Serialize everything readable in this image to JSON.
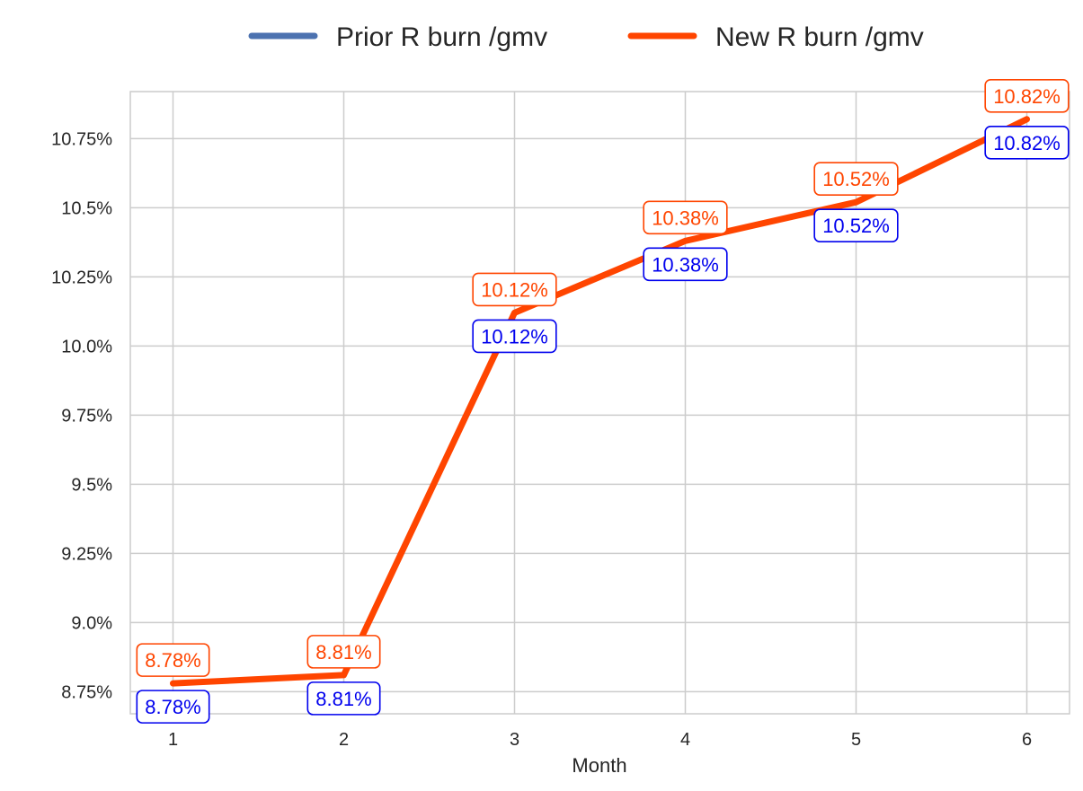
{
  "chart_data": {
    "type": "line",
    "title": "",
    "xlabel": "Month",
    "ylabel": "",
    "x": [
      1,
      2,
      3,
      4,
      5,
      6
    ],
    "x_tick_labels": [
      "1",
      "2",
      "3",
      "4",
      "5",
      "6"
    ],
    "y_ticks": [
      8.75,
      9.0,
      9.25,
      9.5,
      9.75,
      10.0,
      10.25,
      10.5,
      10.75
    ],
    "y_tick_labels": [
      "8.75%",
      "9.0%",
      "9.25%",
      "9.5%",
      "9.75%",
      "10.0%",
      "10.25%",
      "10.5%",
      "10.75%"
    ],
    "xlim": [
      0.75,
      6.25
    ],
    "ylim": [
      8.67,
      10.92
    ],
    "grid": true,
    "legend_position": "top-center, outside",
    "series": [
      {
        "name": "Prior R burn /gmv",
        "color": "#4c72b0",
        "label_color": "#0000ee",
        "values": [
          8.78,
          8.81,
          10.12,
          10.38,
          10.52,
          10.82
        ],
        "data_labels": [
          "8.78%",
          "8.81%",
          "10.12%",
          "10.38%",
          "10.52%",
          "10.82%"
        ]
      },
      {
        "name": "New R burn /gmv",
        "color": "#ff4500",
        "label_color": "#ff4500",
        "values": [
          8.78,
          8.81,
          10.12,
          10.38,
          10.52,
          10.82
        ],
        "data_labels": [
          "8.78%",
          "8.81%",
          "10.12%",
          "10.38%",
          "10.52%",
          "10.82%"
        ]
      }
    ]
  }
}
